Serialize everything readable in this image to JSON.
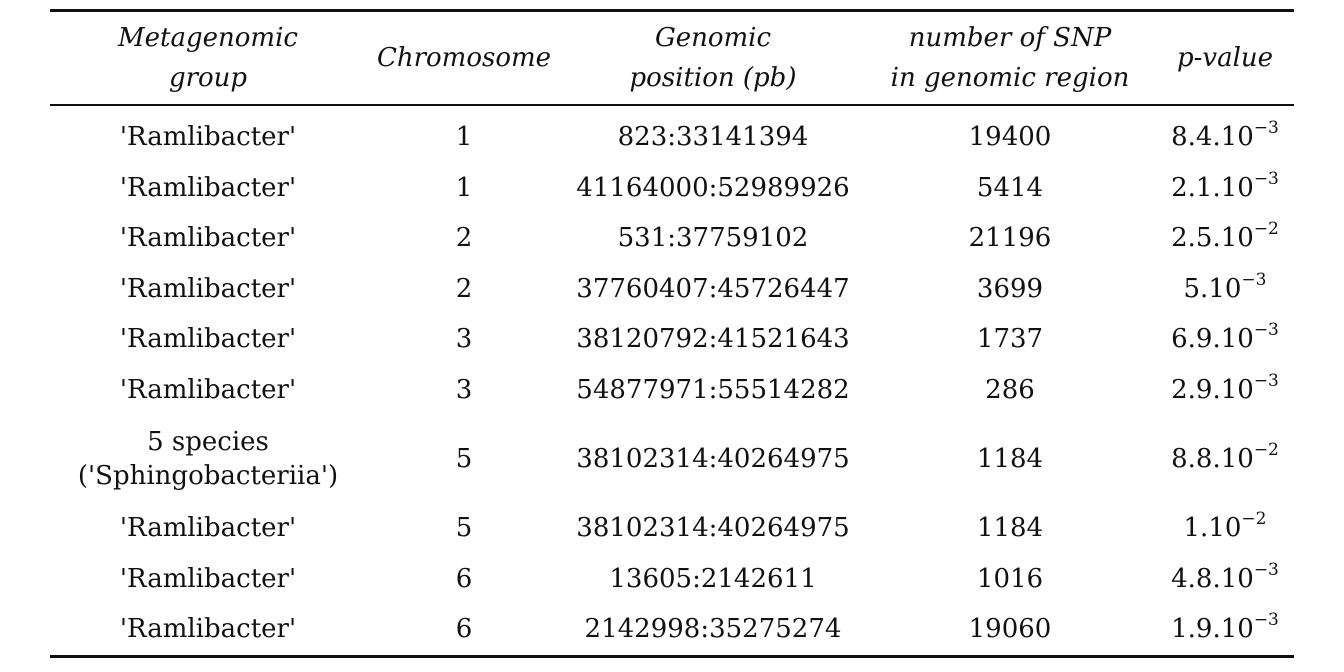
{
  "header": {
    "group_line1": "Metagenomic",
    "group_line2": "group",
    "chromosome": "Chromosome",
    "position_line1": "Genomic",
    "position_line2": "position (pb)",
    "snp_line1": "number of SNP",
    "snp_line2": "in genomic region",
    "pvalue": "p-value"
  },
  "rows": [
    {
      "group": "'Ramlibacter'",
      "chromosome": "1",
      "position": "823:33141394",
      "snp": "19400",
      "p_mantissa": "8.4.10",
      "p_exponent": "−3"
    },
    {
      "group": "'Ramlibacter'",
      "chromosome": "1",
      "position": "41164000:52989926",
      "snp": "5414",
      "p_mantissa": "2.1.10",
      "p_exponent": "−3"
    },
    {
      "group": "'Ramlibacter'",
      "chromosome": "2",
      "position": "531:37759102",
      "snp": "21196",
      "p_mantissa": "2.5.10",
      "p_exponent": "−2"
    },
    {
      "group": "'Ramlibacter'",
      "chromosome": "2",
      "position": "37760407:45726447",
      "snp": "3699",
      "p_mantissa": "5.10",
      "p_exponent": "−3"
    },
    {
      "group": "'Ramlibacter'",
      "chromosome": "3",
      "position": "38120792:41521643",
      "snp": "1737",
      "p_mantissa": "6.9.10",
      "p_exponent": "−3"
    },
    {
      "group": "'Ramlibacter'",
      "chromosome": "3",
      "position": "54877971:55514282",
      "snp": "286",
      "p_mantissa": "2.9.10",
      "p_exponent": "−3"
    },
    {
      "group_line1": "5 species",
      "group_line2": "('Sphingobacteriia')",
      "chromosome": "5",
      "position": "38102314:40264975",
      "snp": "1184",
      "p_mantissa": "8.8.10",
      "p_exponent": "−2"
    },
    {
      "group": "'Ramlibacter'",
      "chromosome": "5",
      "position": "38102314:40264975",
      "snp": "1184",
      "p_mantissa": "1.10",
      "p_exponent": "−2"
    },
    {
      "group": "'Ramlibacter'",
      "chromosome": "6",
      "position": "13605:2142611",
      "snp": "1016",
      "p_mantissa": "4.8.10",
      "p_exponent": "−3"
    },
    {
      "group": "'Ramlibacter'",
      "chromosome": "6",
      "position": "2142998:35275274",
      "snp": "19060",
      "p_mantissa": "1.9.10",
      "p_exponent": "−3"
    }
  ]
}
